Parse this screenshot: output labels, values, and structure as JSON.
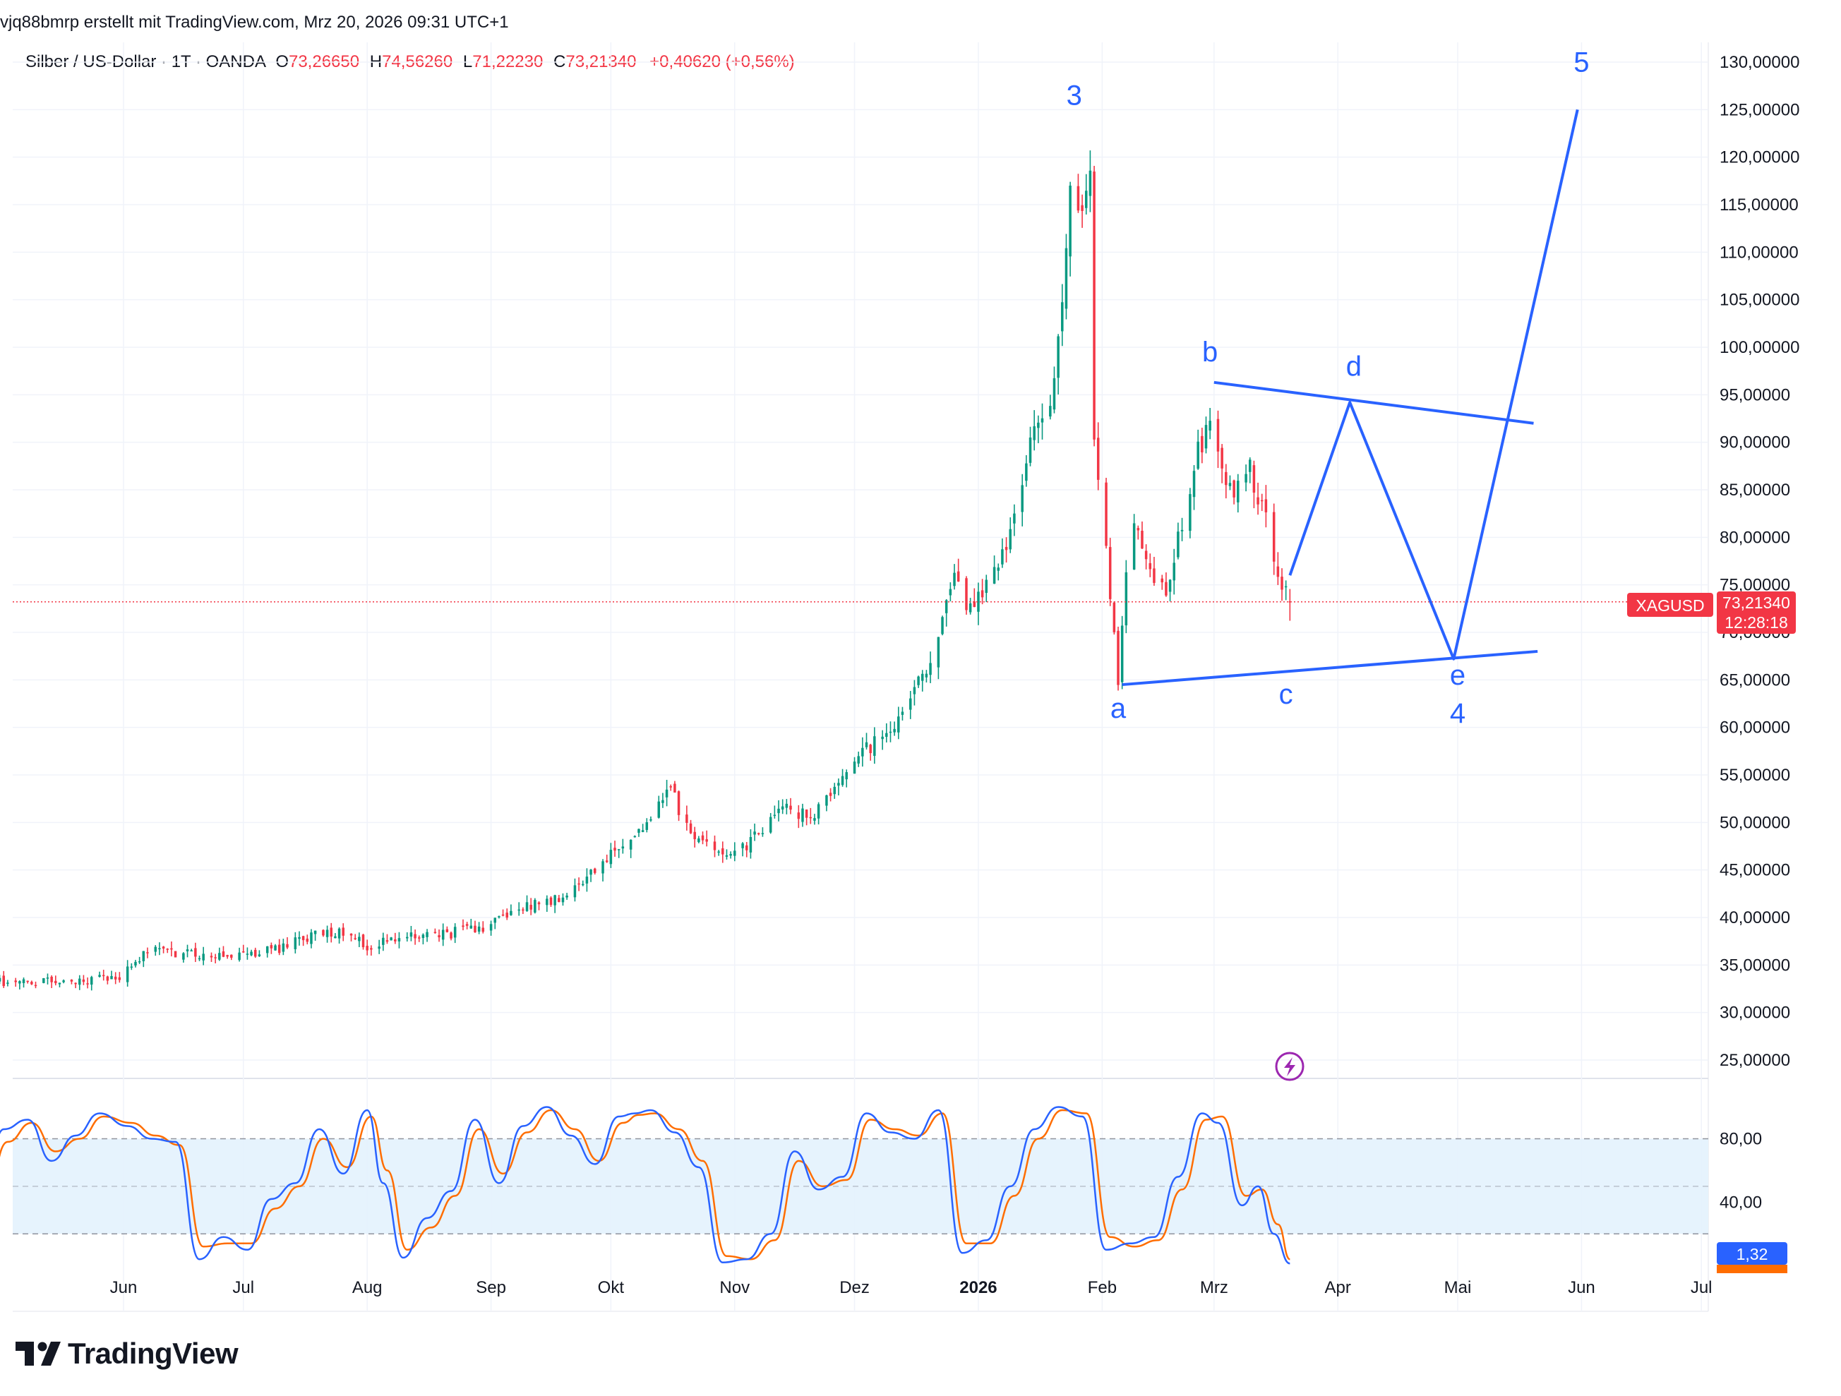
{
  "header": {
    "attribution": "vjq88bmrp erstellt mit TradingView.com, Mrz 20, 2026 09:31 UTC+1"
  },
  "legend": {
    "symbol": "Silber / US-Dollar · 1T · OANDA",
    "open_label": "O",
    "open": "73,26650",
    "high_label": "H",
    "high": "74,56260",
    "low_label": "L",
    "low": "71,22230",
    "close_label": "C",
    "close": "73,21340",
    "change": "+0,40620 (+0,56%)"
  },
  "colors": {
    "up": "#089981",
    "down": "#f23645",
    "drawing": "#2962ff",
    "stoch_k": "#2962ff",
    "stoch_d": "#ff6d00",
    "grid": "#f0f3fa",
    "band_fill": "#e3f2fd",
    "price_line": "#f23645"
  },
  "price_badge": {
    "symbol": "XAGUSD",
    "price": "73,21340",
    "countdown": "12:28:18"
  },
  "stoch_badge": {
    "value": "1,32"
  },
  "branding": {
    "name": "TradingView"
  },
  "chart_data": [
    {
      "type": "candlestick",
      "symbol": "XAGUSD",
      "price_axis": {
        "min": 25,
        "max": 130,
        "step": 5,
        "tick_labels": [
          "130,00000",
          "125,00000",
          "120,00000",
          "115,00000",
          "110,00000",
          "105,00000",
          "100,00000",
          "95,00000",
          "90,00000",
          "85,00000",
          "80,00000",
          "75,00000",
          "70,00000",
          "65,00000",
          "60,00000",
          "55,00000",
          "50,00000",
          "45,00000",
          "40,00000",
          "35,00000",
          "30,00000",
          "25,00000"
        ]
      },
      "time_axis": {
        "labels": [
          {
            "text": "Jun",
            "date": "2025-06-01",
            "bold": false
          },
          {
            "text": "Jul",
            "date": "2025-07-01",
            "bold": false
          },
          {
            "text": "Aug",
            "date": "2025-08-01",
            "bold": false
          },
          {
            "text": "Sep",
            "date": "2025-09-01",
            "bold": false
          },
          {
            "text": "Okt",
            "date": "2025-10-01",
            "bold": false
          },
          {
            "text": "Nov",
            "date": "2025-11-01",
            "bold": false
          },
          {
            "text": "Dez",
            "date": "2025-12-01",
            "bold": false
          },
          {
            "text": "2026",
            "date": "2026-01-01",
            "bold": true
          },
          {
            "text": "Feb",
            "date": "2026-02-01",
            "bold": false
          },
          {
            "text": "Mrz",
            "date": "2026-03-01",
            "bold": false
          },
          {
            "text": "Apr",
            "date": "2026-04-01",
            "bold": false
          },
          {
            "text": "Mai",
            "date": "2026-05-01",
            "bold": false
          },
          {
            "text": "Jun",
            "date": "2026-06-01",
            "bold": false
          },
          {
            "text": "Jul",
            "date": "2026-07-01",
            "bold": false
          }
        ]
      },
      "price_path": [
        [
          "2025-04-03",
          33.3
        ],
        [
          "2025-04-20",
          32.8
        ],
        [
          "2025-05-01",
          33.2
        ],
        [
          "2025-05-20",
          33.3
        ],
        [
          "2025-05-31",
          33.8
        ],
        [
          "2025-06-07",
          36.5
        ],
        [
          "2025-06-20",
          36.2
        ],
        [
          "2025-06-30",
          36.0
        ],
        [
          "2025-07-10",
          36.8
        ],
        [
          "2025-07-22",
          38.5
        ],
        [
          "2025-07-28",
          38.6
        ],
        [
          "2025-08-01",
          37.0
        ],
        [
          "2025-08-10",
          37.8
        ],
        [
          "2025-08-20",
          38.2
        ],
        [
          "2025-08-30",
          39.0
        ],
        [
          "2025-09-08",
          41.0
        ],
        [
          "2025-09-20",
          42.0
        ],
        [
          "2025-09-30",
          46.5
        ],
        [
          "2025-10-09",
          49.5
        ],
        [
          "2025-10-16",
          53.5
        ],
        [
          "2025-10-21",
          48.5
        ],
        [
          "2025-10-28",
          47.0
        ],
        [
          "2025-11-05",
          47.8
        ],
        [
          "2025-11-13",
          52.0
        ],
        [
          "2025-11-20",
          50.3
        ],
        [
          "2025-11-28",
          55.0
        ],
        [
          "2025-12-05",
          58.0
        ],
        [
          "2025-12-14",
          62.0
        ],
        [
          "2025-12-20",
          67.0
        ],
        [
          "2025-12-26",
          75.5
        ],
        [
          "2025-12-29",
          72.0
        ],
        [
          "2026-01-02",
          74.0
        ],
        [
          "2026-01-08",
          79.0
        ],
        [
          "2026-01-15",
          91.0
        ],
        [
          "2026-01-20",
          96.0
        ],
        [
          "2026-01-24",
          116.0
        ],
        [
          "2026-01-27",
          114.0
        ],
        [
          "2026-01-29",
          118.0
        ],
        [
          "2026-01-30",
          89.0
        ],
        [
          "2026-02-02",
          79.0
        ],
        [
          "2026-02-05",
          64.5
        ],
        [
          "2026-02-08",
          82.0
        ],
        [
          "2026-02-13",
          77.0
        ],
        [
          "2026-02-17",
          74.0
        ],
        [
          "2026-02-20",
          80.0
        ],
        [
          "2026-02-24",
          87.5
        ],
        [
          "2026-02-28",
          93.0
        ],
        [
          "2026-03-02",
          89.0
        ],
        [
          "2026-03-06",
          84.0
        ],
        [
          "2026-03-10",
          87.0
        ],
        [
          "2026-03-14",
          82.0
        ],
        [
          "2026-03-18",
          75.0
        ],
        [
          "2026-03-20",
          73.21
        ]
      ],
      "ohlc_last": {
        "date": "2026-03-20",
        "open": 73.2665,
        "high": 74.5626,
        "low": 71.2223,
        "close": 73.2134
      },
      "last_price": 73.2134,
      "annotations": [
        {
          "type": "label",
          "text": "3",
          "date": "2026-01-25",
          "price": 125.5
        },
        {
          "type": "label",
          "text": "a",
          "date": "2026-02-05",
          "price": 61.0
        },
        {
          "type": "label",
          "text": "b",
          "date": "2026-02-28",
          "price": 98.5
        },
        {
          "type": "label",
          "text": "c",
          "date": "2026-03-19",
          "price": 62.5
        },
        {
          "type": "label",
          "text": "d",
          "date": "2026-04-05",
          "price": 97.0
        },
        {
          "type": "label",
          "text": "e",
          "date": "2026-05-01",
          "price": 64.5
        },
        {
          "type": "label",
          "text": "4",
          "date": "2026-05-01",
          "price": 60.5
        },
        {
          "type": "label",
          "text": "5",
          "date": "2026-06-01",
          "price": 129.0
        },
        {
          "type": "trendline",
          "points": [
            [
              "2026-02-06",
              64.5
            ],
            [
              "2026-05-21",
              68.0
            ]
          ]
        },
        {
          "type": "trendline",
          "points": [
            [
              "2026-03-01",
              96.3
            ],
            [
              "2026-05-20",
              92.0
            ]
          ]
        },
        {
          "type": "polyline",
          "points": [
            [
              "2026-03-20",
              76.0
            ],
            [
              "2026-04-04",
              94.2
            ],
            [
              "2026-04-30",
              67.2
            ],
            [
              "2026-05-31",
              125.0
            ]
          ]
        }
      ]
    },
    {
      "type": "line",
      "name": "Stochastic",
      "ylim": [
        -3,
        106
      ],
      "tick_labels": [
        {
          "value": 80,
          "text": "80,00"
        },
        {
          "value": 40,
          "text": "40,00"
        }
      ],
      "bands": {
        "upper": 80,
        "middle": 50,
        "lower": 20
      },
      "k_path": [
        [
          "2025-04-03",
          20
        ],
        [
          "2025-04-08",
          48
        ],
        [
          "2025-04-14",
          36
        ],
        [
          "2025-04-20",
          46
        ],
        [
          "2025-04-26",
          34
        ],
        [
          "2025-05-02",
          86
        ],
        [
          "2025-05-08",
          92
        ],
        [
          "2025-05-14",
          66
        ],
        [
          "2025-05-20",
          82
        ],
        [
          "2025-05-26",
          96
        ],
        [
          "2025-06-02",
          88
        ],
        [
          "2025-06-08",
          80
        ],
        [
          "2025-06-14",
          78
        ],
        [
          "2025-06-20",
          4
        ],
        [
          "2025-06-26",
          18
        ],
        [
          "2025-07-02",
          10
        ],
        [
          "2025-07-08",
          42
        ],
        [
          "2025-07-14",
          52
        ],
        [
          "2025-07-20",
          86
        ],
        [
          "2025-07-26",
          58
        ],
        [
          "2025-08-01",
          98
        ],
        [
          "2025-08-05",
          52
        ],
        [
          "2025-08-10",
          5
        ],
        [
          "2025-08-16",
          30
        ],
        [
          "2025-08-22",
          47
        ],
        [
          "2025-08-28",
          92
        ],
        [
          "2025-09-03",
          52
        ],
        [
          "2025-09-09",
          88
        ],
        [
          "2025-09-15",
          100
        ],
        [
          "2025-09-21",
          82
        ],
        [
          "2025-09-27",
          64
        ],
        [
          "2025-10-03",
          94
        ],
        [
          "2025-10-07",
          96
        ],
        [
          "2025-10-11",
          98
        ],
        [
          "2025-10-17",
          84
        ],
        [
          "2025-10-23",
          62
        ],
        [
          "2025-10-29",
          2
        ],
        [
          "2025-11-04",
          4
        ],
        [
          "2025-11-10",
          20
        ],
        [
          "2025-11-16",
          72
        ],
        [
          "2025-11-22",
          48
        ],
        [
          "2025-11-28",
          56
        ],
        [
          "2025-12-04",
          96
        ],
        [
          "2025-12-10",
          84
        ],
        [
          "2025-12-16",
          80
        ],
        [
          "2025-12-22",
          98
        ],
        [
          "2025-12-28",
          8
        ],
        [
          "2026-01-03",
          16
        ],
        [
          "2026-01-09",
          50
        ],
        [
          "2026-01-15",
          86
        ],
        [
          "2026-01-21",
          100
        ],
        [
          "2026-01-27",
          94
        ],
        [
          "2026-02-02",
          10
        ],
        [
          "2026-02-08",
          14
        ],
        [
          "2026-02-14",
          18
        ],
        [
          "2026-02-20",
          56
        ],
        [
          "2026-02-26",
          96
        ],
        [
          "2026-03-02",
          90
        ],
        [
          "2026-03-08",
          38
        ],
        [
          "2026-03-12",
          50
        ],
        [
          "2026-03-16",
          20
        ],
        [
          "2026-03-20",
          1.32
        ]
      ],
      "d_path": [
        [
          "2025-04-03",
          22
        ],
        [
          "2025-04-09",
          44
        ],
        [
          "2025-04-15",
          40
        ],
        [
          "2025-04-21",
          42
        ],
        [
          "2025-04-27",
          38
        ],
        [
          "2025-05-03",
          78
        ],
        [
          "2025-05-09",
          90
        ],
        [
          "2025-05-15",
          72
        ],
        [
          "2025-05-21",
          80
        ],
        [
          "2025-05-27",
          94
        ],
        [
          "2025-06-03",
          90
        ],
        [
          "2025-06-09",
          82
        ],
        [
          "2025-06-15",
          76
        ],
        [
          "2025-06-21",
          12
        ],
        [
          "2025-06-27",
          14
        ],
        [
          "2025-07-03",
          14
        ],
        [
          "2025-07-09",
          36
        ],
        [
          "2025-07-15",
          50
        ],
        [
          "2025-07-21",
          80
        ],
        [
          "2025-07-27",
          62
        ],
        [
          "2025-08-02",
          94
        ],
        [
          "2025-08-06",
          60
        ],
        [
          "2025-08-11",
          10
        ],
        [
          "2025-08-17",
          24
        ],
        [
          "2025-08-23",
          44
        ],
        [
          "2025-08-29",
          86
        ],
        [
          "2025-09-04",
          58
        ],
        [
          "2025-09-10",
          84
        ],
        [
          "2025-09-16",
          98
        ],
        [
          "2025-09-22",
          86
        ],
        [
          "2025-09-28",
          66
        ],
        [
          "2025-10-04",
          90
        ],
        [
          "2025-10-08",
          95
        ],
        [
          "2025-10-12",
          96
        ],
        [
          "2025-10-18",
          86
        ],
        [
          "2025-10-24",
          66
        ],
        [
          "2025-10-30",
          6
        ],
        [
          "2025-11-05",
          4
        ],
        [
          "2025-11-11",
          16
        ],
        [
          "2025-11-17",
          66
        ],
        [
          "2025-11-23",
          50
        ],
        [
          "2025-11-29",
          54
        ],
        [
          "2025-12-05",
          92
        ],
        [
          "2025-12-11",
          86
        ],
        [
          "2025-12-17",
          82
        ],
        [
          "2025-12-23",
          96
        ],
        [
          "2025-12-29",
          14
        ],
        [
          "2026-01-04",
          14
        ],
        [
          "2026-01-10",
          44
        ],
        [
          "2026-01-16",
          80
        ],
        [
          "2026-01-22",
          98
        ],
        [
          "2026-01-28",
          96
        ],
        [
          "2026-02-03",
          18
        ],
        [
          "2026-02-09",
          12
        ],
        [
          "2026-02-15",
          16
        ],
        [
          "2026-02-21",
          48
        ],
        [
          "2026-02-27",
          92
        ],
        [
          "2026-03-03",
          94
        ],
        [
          "2026-03-09",
          44
        ],
        [
          "2026-03-13",
          48
        ],
        [
          "2026-03-17",
          26
        ],
        [
          "2026-03-20",
          4
        ]
      ]
    }
  ]
}
